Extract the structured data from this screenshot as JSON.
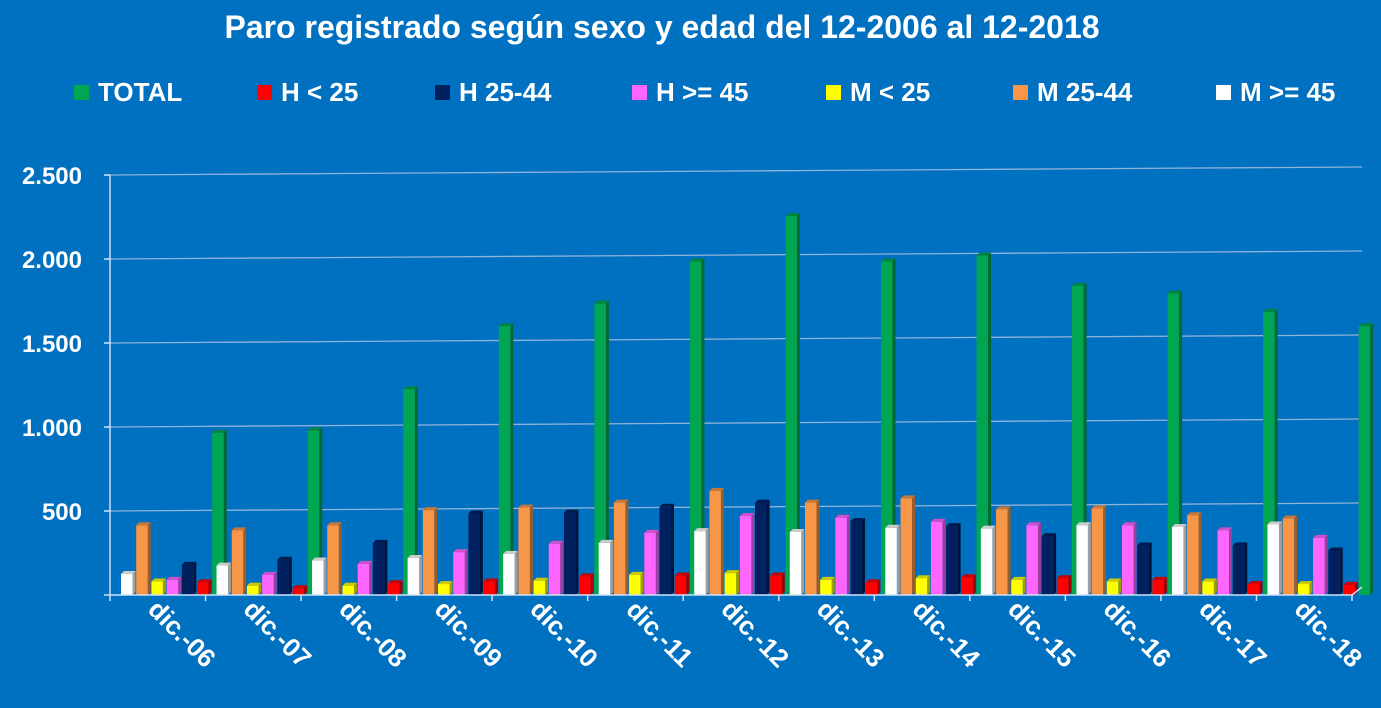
{
  "colors": {
    "background": "#0070C0",
    "text": "#ffffff",
    "gridline": "#8FB3DA"
  },
  "chart_data": {
    "type": "bar",
    "title": "Paro registrado según sexo y edad del 12-2006 al 12-2018",
    "xlabel": "",
    "ylabel": "",
    "ylim": [
      0,
      2500
    ],
    "yticks": [
      0,
      500,
      1000,
      1500,
      2000,
      2500
    ],
    "ytick_labels": [
      "",
      "500",
      "1.000",
      "1.500",
      "2.000",
      "2.500"
    ],
    "grid": true,
    "legend_position": "top",
    "categories": [
      "dic.-06",
      "dic.-07",
      "dic.-08",
      "dic.-09",
      "dic.-10",
      "dic.-11",
      "dic.-12",
      "dic.-13",
      "dic.-14",
      "dic.-15",
      "dic.-16",
      "dic.-17",
      "dic.-18"
    ],
    "legend": [
      {
        "name": "TOTAL",
        "color": "#00A651"
      },
      {
        "name": "H < 25",
        "color": "#FF0000"
      },
      {
        "name": "H 25-44",
        "color": "#002060"
      },
      {
        "name": "H >= 45",
        "color": "#FF66FF"
      },
      {
        "name": "M < 25",
        "color": "#FFFF00"
      },
      {
        "name": "M 25-44",
        "color": "#F79646"
      },
      {
        "name": "M >= 45",
        "color": "#FFFFFF"
      }
    ],
    "series": [
      {
        "name": "M >= 45",
        "color": "#FFFFFF",
        "values": [
          125,
          175,
          205,
          220,
          245,
          310,
          380,
          375,
          400,
          395,
          415,
          405,
          420
        ]
      },
      {
        "name": "M 25-44",
        "color": "#F79646",
        "values": [
          415,
          385,
          415,
          505,
          520,
          550,
          620,
          550,
          575,
          510,
          515,
          475,
          455
        ]
      },
      {
        "name": "M < 25",
        "color": "#FFFF00",
        "values": [
          80,
          55,
          55,
          65,
          85,
          120,
          130,
          90,
          100,
          90,
          80,
          80,
          65
        ]
      },
      {
        "name": "H >= 45",
        "color": "#FF66FF",
        "values": [
          90,
          120,
          185,
          255,
          305,
          370,
          470,
          460,
          435,
          415,
          415,
          385,
          340
        ]
      },
      {
        "name": "H 25-44",
        "color": "#002060",
        "values": [
          180,
          210,
          310,
          485,
          490,
          525,
          550,
          440,
          410,
          350,
          295,
          295,
          265
        ]
      },
      {
        "name": "H < 25",
        "color": "#FF0000",
        "values": [
          75,
          40,
          70,
          80,
          110,
          115,
          115,
          75,
          105,
          100,
          90,
          65,
          60
        ]
      },
      {
        "name": "TOTAL",
        "color": "#00A651",
        "values": [
          965,
          980,
          1225,
          1600,
          1735,
          1985,
          2255,
          1985,
          2020,
          1840,
          1795,
          1685,
          1600
        ]
      }
    ]
  }
}
